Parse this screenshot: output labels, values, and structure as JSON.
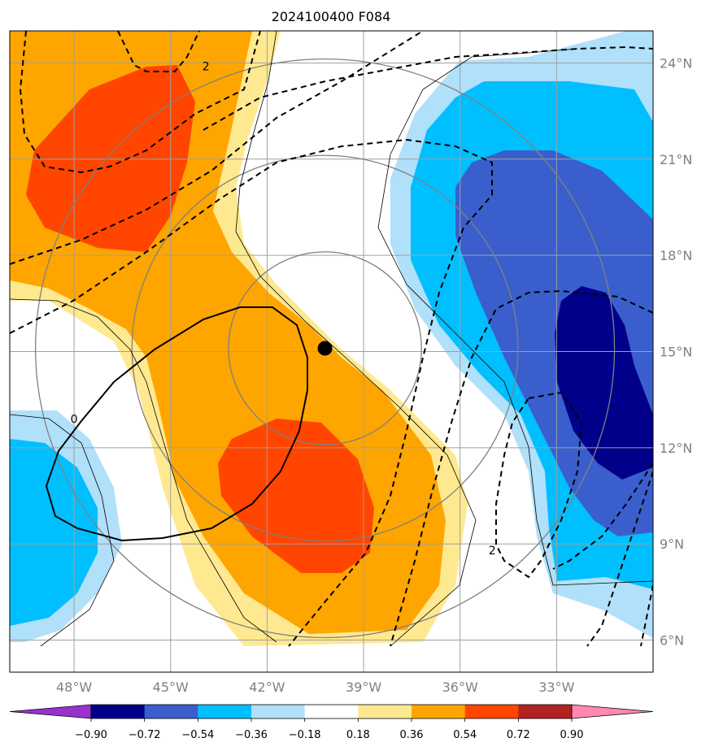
{
  "chart_data": {
    "type": "map-contour",
    "title": "2024100400 F084",
    "projection": "lat-lon map",
    "lon_range_deg": [
      -50.0,
      -30.0
    ],
    "lat_range_deg": [
      5.0,
      25.0
    ],
    "lon_ticks": [
      {
        "value": -48,
        "label": "48°W"
      },
      {
        "value": -45,
        "label": "45°W"
      },
      {
        "value": -42,
        "label": "42°W"
      },
      {
        "value": -39,
        "label": "39°W"
      },
      {
        "value": -36,
        "label": "36°W"
      },
      {
        "value": -33,
        "label": "33°W"
      }
    ],
    "lat_ticks": [
      {
        "value": 24,
        "label": "24°N"
      },
      {
        "value": 21,
        "label": "21°N"
      },
      {
        "value": 18,
        "label": "18°N"
      },
      {
        "value": 15,
        "label": "15°N"
      },
      {
        "value": 12,
        "label": "12°N"
      },
      {
        "value": 9,
        "label": "9°N"
      },
      {
        "value": 6,
        "label": "6°N"
      }
    ],
    "gridlines": true,
    "colorbar": {
      "orientation": "horizontal",
      "extend": "both",
      "boundaries": [
        -0.9,
        -0.72,
        -0.54,
        -0.36,
        -0.18,
        0.18,
        0.36,
        0.54,
        0.72,
        0.9
      ],
      "tick_labels": [
        "−0.90",
        "−0.72",
        "−0.54",
        "−0.36",
        "−0.18",
        "0.18",
        "0.36",
        "0.54",
        "0.72",
        "0.90"
      ],
      "colors": [
        "#9932cc",
        "#00008b",
        "#3a5fcd",
        "#00bfff",
        "#b0e0fa",
        "#ffffff",
        "#ffe990",
        "#ffa500",
        "#ff4500",
        "#b22222",
        "#ff88b0"
      ]
    },
    "storm_center": {
      "lon": -40.2,
      "lat": 15.1
    },
    "range_rings_deg": [
      3,
      6,
      9
    ],
    "contour_labels": [
      {
        "text": "2",
        "lon": -43.9,
        "lat": 23.9
      },
      {
        "text": "0",
        "lon": -48.0,
        "lat": 12.9
      },
      {
        "text": "2",
        "lon": -35.0,
        "lat": 8.8
      }
    ]
  }
}
